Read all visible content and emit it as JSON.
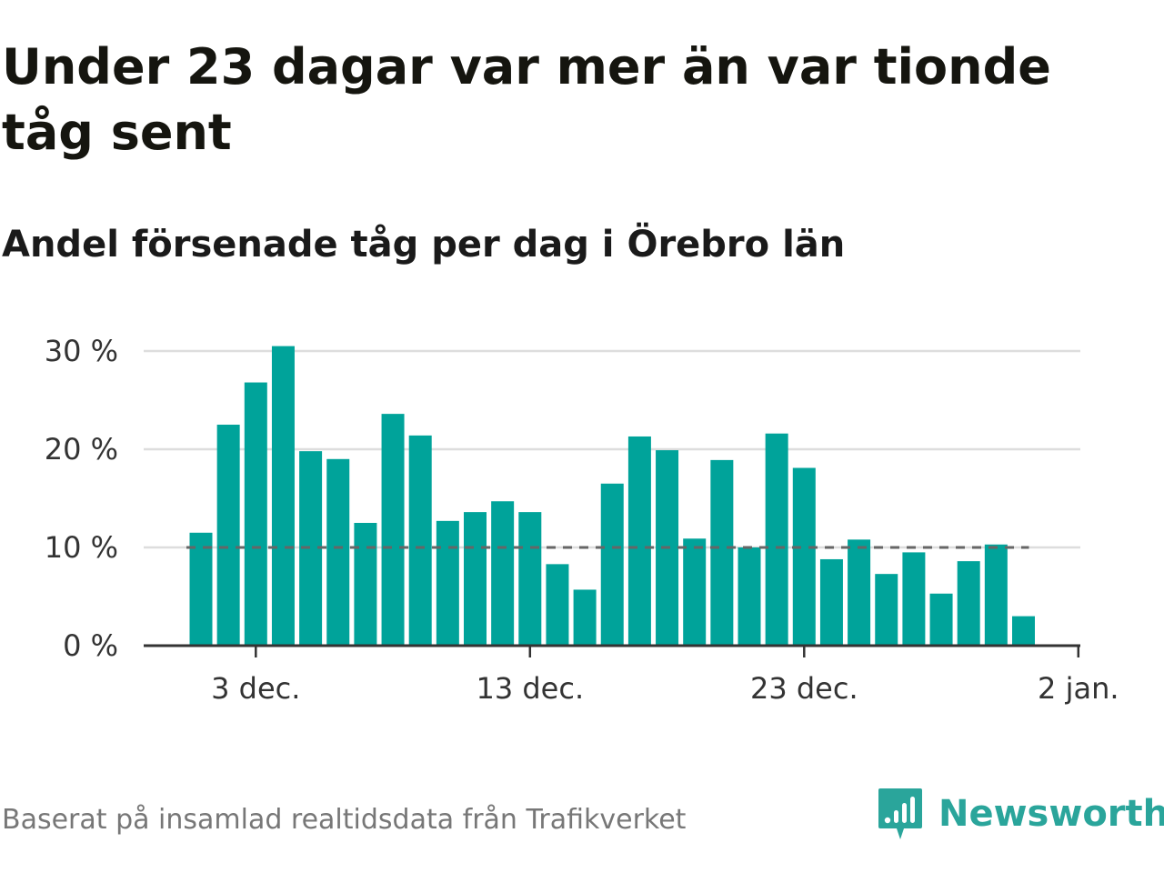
{
  "header": {
    "title": "Under 23 dagar var mer än var tionde tåg sent",
    "subtitle": "Andel försenade tåg per dag i Örebro län"
  },
  "footer": {
    "source": "Baserat på insamlad realtidsdata från Trafikverket",
    "brand": "Newsworthy"
  },
  "colors": {
    "bar": "#00a39a",
    "reference_line": "#666666",
    "grid": "#dddddd",
    "brand": "#2aa59b"
  },
  "chart_data": {
    "type": "bar",
    "title": "Under 23 dagar var mer än var tionde tåg sent",
    "subtitle": "Andel försenade tåg per dag i Örebro län",
    "x_start_label": "1 dec.",
    "x": [
      "1 dec.",
      "2 dec.",
      "3 dec.",
      "4 dec.",
      "5 dec.",
      "6 dec.",
      "7 dec.",
      "8 dec.",
      "9 dec.",
      "10 dec.",
      "11 dec.",
      "12 dec.",
      "13 dec.",
      "14 dec.",
      "15 dec.",
      "16 dec.",
      "17 dec.",
      "18 dec.",
      "19 dec.",
      "20 dec.",
      "21 dec.",
      "22 dec.",
      "23 dec.",
      "24 dec.",
      "25 dec.",
      "26 dec.",
      "27 dec.",
      "28 dec.",
      "29 dec.",
      "30 dec.",
      "31 dec."
    ],
    "values": [
      11.5,
      22.5,
      26.8,
      30.5,
      19.8,
      19.0,
      12.5,
      23.6,
      21.4,
      12.7,
      13.6,
      14.7,
      13.6,
      8.3,
      5.7,
      16.5,
      21.3,
      19.9,
      10.9,
      18.9,
      10.0,
      21.6,
      18.1,
      8.8,
      10.8,
      7.3,
      9.5,
      5.3,
      8.6,
      10.3,
      3.0
    ],
    "ylim": [
      0,
      30
    ],
    "yticks": [
      {
        "value": 0,
        "label": "0 %"
      },
      {
        "value": 10,
        "label": "10 %"
      },
      {
        "value": 20,
        "label": "20 %"
      },
      {
        "value": 30,
        "label": "30 %"
      }
    ],
    "xticks": [
      {
        "index": 2,
        "label": "3 dec."
      },
      {
        "index": 12,
        "label": "13 dec."
      },
      {
        "index": 22,
        "label": "23 dec."
      },
      {
        "index": 32,
        "label": "2 jan."
      }
    ],
    "reference_line": 10,
    "grid": true,
    "xlabel": "",
    "ylabel": ""
  }
}
